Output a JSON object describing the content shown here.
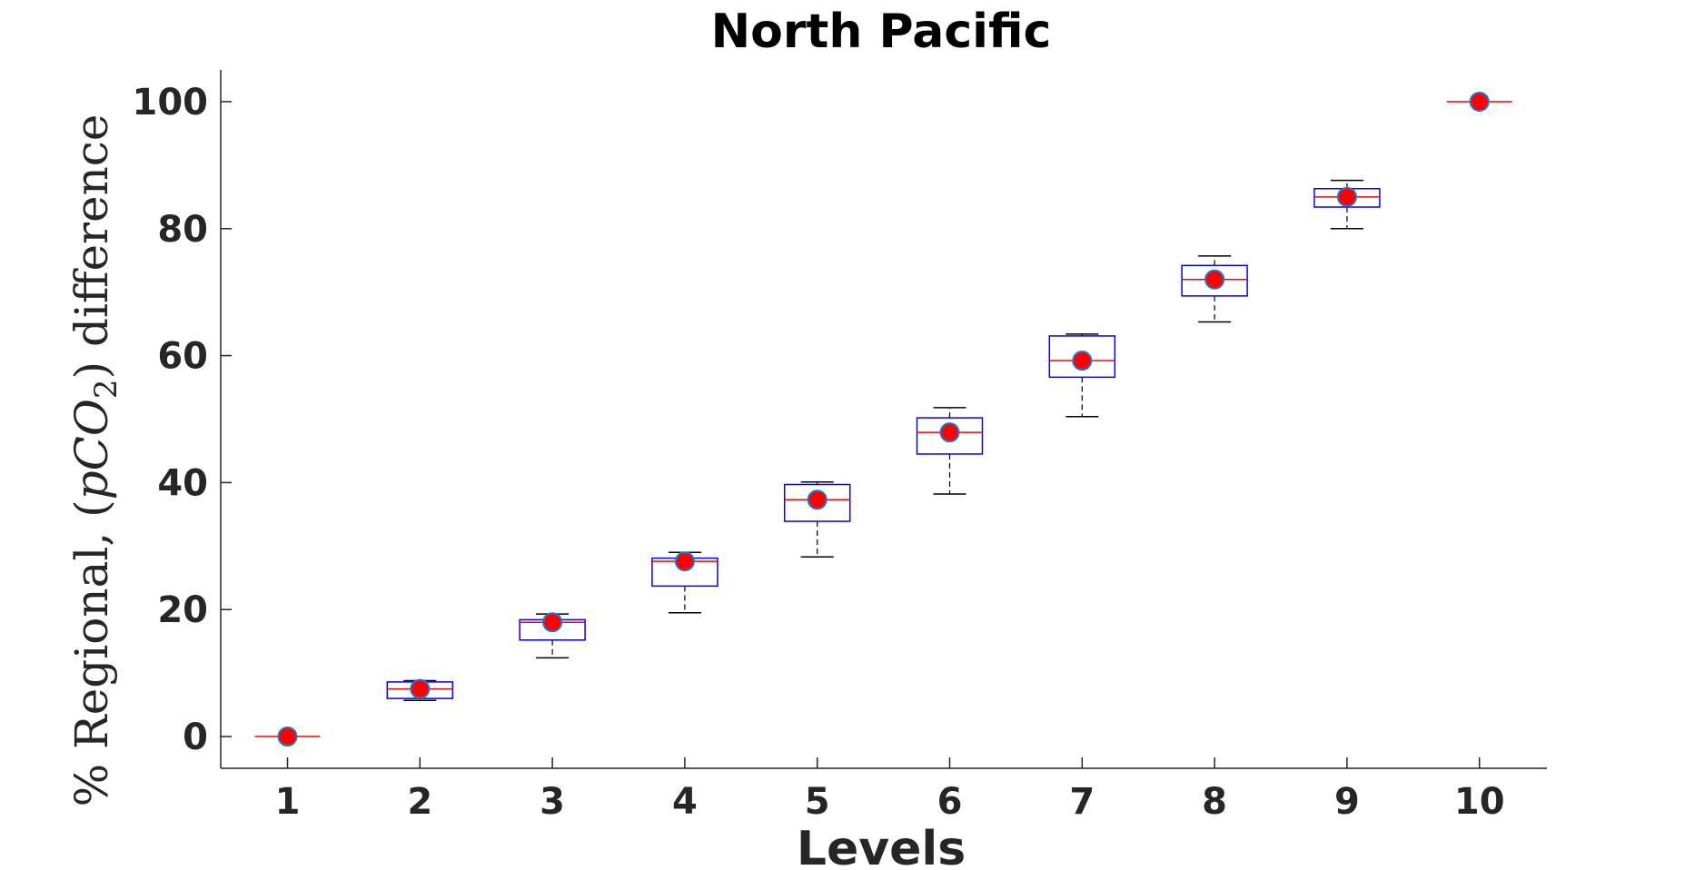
{
  "chart_data": {
    "type": "box",
    "title": "North Pacific",
    "xlabel": "Levels",
    "ylabel": {
      "prefix": "% Regional, (",
      "var": "pCO",
      "sub": "2",
      "suffix": ") difference"
    },
    "categories": [
      "1",
      "2",
      "3",
      "4",
      "5",
      "6",
      "7",
      "8",
      "9",
      "10"
    ],
    "ylim": [
      -5,
      105
    ],
    "yticks": [
      0,
      20,
      40,
      60,
      80,
      100
    ],
    "boxes": [
      {
        "level": "1",
        "min": 0,
        "q1": 0,
        "median": 0,
        "q3": 0,
        "max": 0,
        "mean": 0
      },
      {
        "level": "2",
        "min": 5.7,
        "q1": 6.0,
        "median": 7.5,
        "q3": 8.6,
        "max": 8.8,
        "mean": 7.5
      },
      {
        "level": "3",
        "min": 12.4,
        "q1": 15.2,
        "median": 18.0,
        "q3": 18.4,
        "max": 19.3,
        "mean": 18.0
      },
      {
        "level": "4",
        "min": 19.5,
        "q1": 23.7,
        "median": 27.6,
        "q3": 28.1,
        "max": 29.0,
        "mean": 27.6
      },
      {
        "level": "5",
        "min": 28.3,
        "q1": 33.9,
        "median": 37.3,
        "q3": 39.7,
        "max": 40.1,
        "mean": 37.3
      },
      {
        "level": "6",
        "min": 38.2,
        "q1": 44.5,
        "median": 47.9,
        "q3": 50.2,
        "max": 51.8,
        "mean": 47.9
      },
      {
        "level": "7",
        "min": 50.4,
        "q1": 56.6,
        "median": 59.2,
        "q3": 63.1,
        "max": 63.4,
        "mean": 59.2
      },
      {
        "level": "8",
        "min": 65.3,
        "q1": 69.4,
        "median": 72.0,
        "q3": 74.2,
        "max": 75.7,
        "mean": 72.0
      },
      {
        "level": "9",
        "min": 80.0,
        "q1": 83.4,
        "median": 85.0,
        "q3": 86.3,
        "max": 87.6,
        "mean": 85.0
      },
      {
        "level": "10",
        "min": 100,
        "q1": 100,
        "median": 100,
        "q3": 100,
        "max": 100,
        "mean": 100
      }
    ],
    "colors": {
      "box": "#0000ff",
      "median": "#ff0000",
      "whisker": "#000000",
      "mean_fill": "#ff0000",
      "mean_edge": "#1f77d0",
      "axis": "#262626",
      "title": "#000000"
    },
    "grid": false,
    "legend": "none"
  }
}
